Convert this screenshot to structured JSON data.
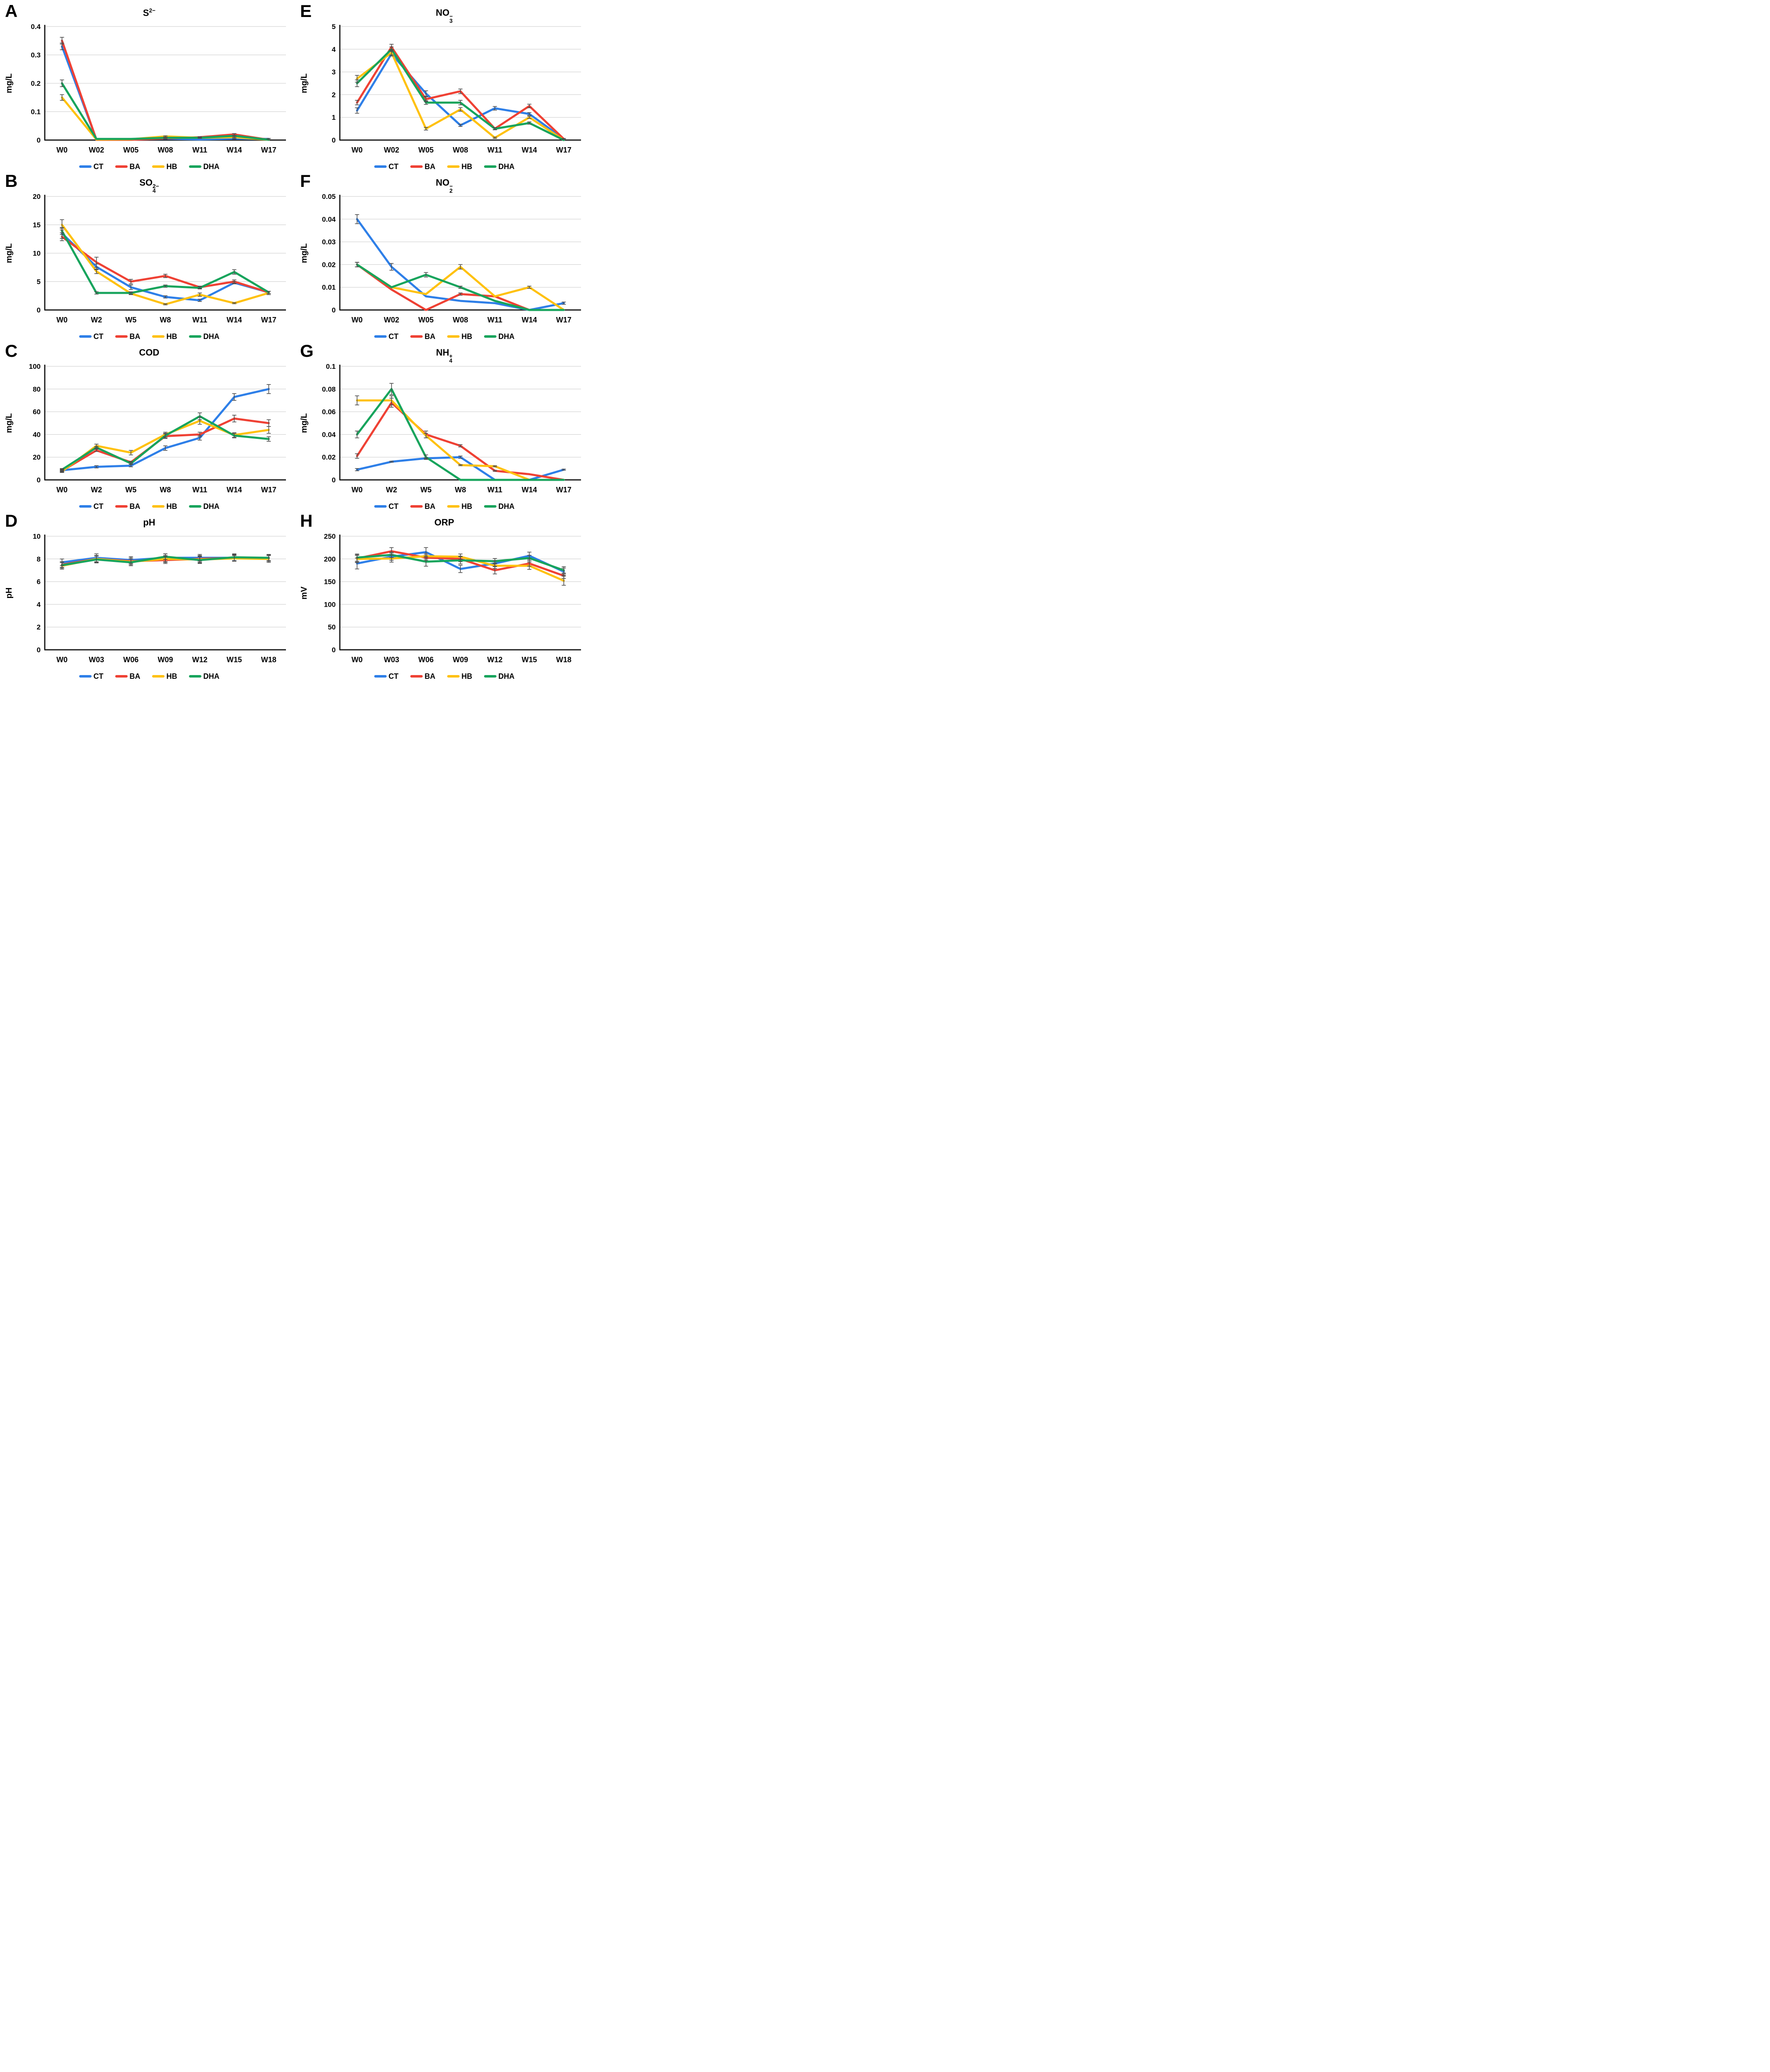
{
  "legend": {
    "items": [
      {
        "label": "CT",
        "color": "#2E7FE8"
      },
      {
        "label": "BA",
        "color": "#EF4134"
      },
      {
        "label": "HB",
        "color": "#FFC10E"
      },
      {
        "label": "DHA",
        "color": "#17A45C"
      }
    ]
  },
  "error_bar_color": "#4a4a4a",
  "gridline_color": "#c9c9c9",
  "axis_color": "#1a1a1a",
  "chart_data": [
    {
      "panel_label": "A",
      "type": "line",
      "title": {
        "base": "S",
        "sub": "",
        "sup": "2−"
      },
      "ylabel": "mg/L",
      "ylim": [
        0,
        0.4
      ],
      "yticks": [
        0,
        0.1,
        0.2,
        0.3,
        0.4
      ],
      "ytick_labels": [
        "0",
        "0.1",
        "0.2",
        "0.3",
        "0.4"
      ],
      "categories": [
        "W0",
        "W02",
        "W05",
        "W08",
        "W11",
        "W14",
        "W17"
      ],
      "grid": true,
      "legend_position": "bottom",
      "series": [
        {
          "name": "CT",
          "values": [
            0.33,
            0.002,
            0.002,
            0.005,
            0.002,
            0.005,
            0.004
          ],
          "errors": [
            0.012,
            0,
            0,
            0.002,
            0,
            0.002,
            0.002
          ]
        },
        {
          "name": "BA",
          "values": [
            0.35,
            0.001,
            0.001,
            0.006,
            0.01,
            0.02,
            0.001
          ],
          "errors": [
            0.012,
            0,
            0,
            0,
            0.002,
            0.003,
            0
          ]
        },
        {
          "name": "HB",
          "values": [
            0.15,
            0.002,
            0.003,
            0.013,
            0.008,
            0.01,
            0.001
          ],
          "errors": [
            0.01,
            0,
            0,
            0.002,
            0,
            0.002,
            0
          ]
        },
        {
          "name": "DHA",
          "values": [
            0.2,
            0.004,
            0.004,
            0.008,
            0.008,
            0.015,
            0.001
          ],
          "errors": [
            0.012,
            0,
            0,
            0.002,
            0.002,
            0.002,
            0
          ]
        }
      ]
    },
    {
      "panel_label": "E",
      "type": "line",
      "title": {
        "base": "NO",
        "sub": "3",
        "sup": "−"
      },
      "ylabel": "mg/L",
      "ylim": [
        0,
        5
      ],
      "yticks": [
        0,
        1,
        2,
        3,
        4,
        5
      ],
      "ytick_labels": [
        "0",
        "1",
        "2",
        "3",
        "4",
        "5"
      ],
      "categories": [
        "W0",
        "W02",
        "W05",
        "W08",
        "W11",
        "W14",
        "W17"
      ],
      "grid": true,
      "legend_position": "bottom",
      "series": [
        {
          "name": "CT",
          "values": [
            1.3,
            3.8,
            2.05,
            0.65,
            1.4,
            1.15,
            0.05
          ],
          "errors": [
            0.12,
            0.1,
            0.12,
            0.05,
            0.08,
            0.06,
            0.02
          ]
        },
        {
          "name": "BA",
          "values": [
            1.65,
            4.1,
            1.8,
            2.15,
            0.5,
            1.5,
            0.05
          ],
          "errors": [
            0.1,
            0.12,
            0.1,
            0.1,
            0.05,
            0.08,
            0.02
          ]
        },
        {
          "name": "HB",
          "values": [
            2.7,
            3.85,
            0.5,
            1.35,
            0.1,
            1.0,
            0.0
          ],
          "errors": [
            0.15,
            0.1,
            0.06,
            0.08,
            0.03,
            0.05,
            0
          ]
        },
        {
          "name": "DHA",
          "values": [
            2.5,
            4.0,
            1.65,
            1.65,
            0.5,
            0.75,
            0.0
          ],
          "errors": [
            0.15,
            0.1,
            0.08,
            0.1,
            0.04,
            0.05,
            0
          ]
        }
      ]
    },
    {
      "panel_label": "B",
      "type": "line",
      "title": {
        "base": "SO",
        "sub": "4",
        "sup": "2−"
      },
      "ylabel": "mg/L",
      "ylim": [
        0,
        20
      ],
      "yticks": [
        0,
        5,
        10,
        15,
        20
      ],
      "ytick_labels": [
        "0",
        "5",
        "10",
        "15",
        "20"
      ],
      "categories": [
        "W0",
        "W2",
        "W5",
        "W8",
        "W11",
        "W14",
        "W17"
      ],
      "grid": true,
      "legend_position": "bottom",
      "series": [
        {
          "name": "CT",
          "values": [
            13.5,
            7.6,
            4.0,
            2.3,
            1.7,
            4.8,
            3.1
          ],
          "errors": [
            0.9,
            0.5,
            0.4,
            0.2,
            0.2,
            0.2,
            0.2
          ]
        },
        {
          "name": "BA",
          "values": [
            12.9,
            8.4,
            5.0,
            6.0,
            4.0,
            5.0,
            3.1
          ],
          "errors": [
            0.7,
            0.9,
            0.4,
            0.3,
            0.2,
            0.3,
            0.2
          ]
        },
        {
          "name": "HB",
          "values": [
            15.0,
            6.8,
            2.9,
            1.0,
            2.7,
            1.2,
            3.0
          ],
          "errors": [
            0.9,
            0.4,
            0.2,
            0.1,
            0.3,
            0.1,
            0.3
          ]
        },
        {
          "name": "DHA",
          "values": [
            13.9,
            3.0,
            3.0,
            4.2,
            3.9,
            6.7,
            3.1
          ],
          "errors": [
            0.6,
            0.2,
            0.2,
            0.2,
            0.2,
            0.4,
            0.2
          ]
        }
      ]
    },
    {
      "panel_label": "F",
      "type": "line",
      "title": {
        "base": "NO",
        "sub": "2",
        "sup": "−"
      },
      "ylabel": "mg/L",
      "ylim": [
        0,
        0.05
      ],
      "yticks": [
        0,
        0.01,
        0.02,
        0.03,
        0.04,
        0.05
      ],
      "ytick_labels": [
        "0",
        "0.01",
        "0.02",
        "0.03",
        "0.04",
        "0.05"
      ],
      "categories": [
        "W0",
        "W02",
        "W05",
        "W08",
        "W11",
        "W14",
        "W17"
      ],
      "grid": true,
      "legend_position": "bottom",
      "series": [
        {
          "name": "CT",
          "values": [
            0.04,
            0.019,
            0.006,
            0.004,
            0.003,
            0.0,
            0.003
          ],
          "errors": [
            0.002,
            0.0015,
            0,
            0,
            0,
            0,
            0.0005
          ]
        },
        {
          "name": "BA",
          "values": [
            0.02,
            0.009,
            0.0,
            0.007,
            0.006,
            0.0,
            0.0
          ],
          "errors": [
            0.001,
            0,
            0,
            0.0005,
            0,
            0,
            0
          ]
        },
        {
          "name": "HB",
          "values": [
            0.02,
            0.01,
            0.007,
            0.019,
            0.006,
            0.01,
            0.0
          ],
          "errors": [
            0.001,
            0,
            0,
            0.001,
            0,
            0.0005,
            0
          ]
        },
        {
          "name": "DHA",
          "values": [
            0.02,
            0.01,
            0.0155,
            0.01,
            0.004,
            0.0,
            0.0
          ],
          "errors": [
            0.001,
            0,
            0.001,
            0.0005,
            0,
            0,
            0
          ]
        }
      ]
    },
    {
      "panel_label": "C",
      "type": "line",
      "title": {
        "base": "COD",
        "sub": "",
        "sup": ""
      },
      "ylabel": "mg/L",
      "ylim": [
        0,
        100
      ],
      "yticks": [
        0,
        20,
        40,
        60,
        80,
        100
      ],
      "ytick_labels": [
        "0",
        "20",
        "40",
        "60",
        "80",
        "100"
      ],
      "categories": [
        "W0",
        "W2",
        "W5",
        "W8",
        "W11",
        "W14",
        "W17"
      ],
      "grid": true,
      "legend_position": "bottom",
      "series": [
        {
          "name": "CT",
          "values": [
            8.5,
            11.5,
            12.5,
            28.0,
            37.0,
            73.0,
            80.0
          ],
          "errors": [
            1,
            1,
            1,
            2,
            2,
            3,
            4
          ]
        },
        {
          "name": "BA",
          "values": [
            8.0,
            26.0,
            15.5,
            38.5,
            40.0,
            54.0,
            50.0
          ],
          "errors": [
            1,
            1,
            1,
            2,
            2,
            3,
            3
          ]
        },
        {
          "name": "HB",
          "values": [
            7.5,
            30.0,
            24.0,
            40.0,
            52.0,
            39.5,
            44.0
          ],
          "errors": [
            1,
            1.5,
            2,
            2,
            3,
            2,
            3
          ]
        },
        {
          "name": "DHA",
          "values": [
            9.0,
            28.5,
            14.5,
            39.0,
            56.0,
            39.0,
            36.0
          ],
          "errors": [
            1,
            1,
            1,
            2,
            3,
            2,
            2
          ]
        }
      ]
    },
    {
      "panel_label": "G",
      "type": "line",
      "title": {
        "base": "NH",
        "sub": "4",
        "sup": "+"
      },
      "ylabel": "mg/L",
      "ylim": [
        0,
        0.1
      ],
      "yticks": [
        0,
        0.02,
        0.04,
        0.06,
        0.08,
        0.1
      ],
      "ytick_labels": [
        "0",
        "0.02",
        "0.04",
        "0.06",
        "0.08",
        "0.1"
      ],
      "categories": [
        "W0",
        "W2",
        "W5",
        "W8",
        "W11",
        "W14",
        "W17"
      ],
      "grid": true,
      "legend_position": "bottom",
      "series": [
        {
          "name": "CT",
          "values": [
            0.009,
            0.016,
            0.019,
            0.02,
            0.0,
            0.0,
            0.009
          ],
          "errors": [
            0.001,
            0.0005,
            0.0005,
            0.001,
            0,
            0,
            0.0005
          ]
        },
        {
          "name": "BA",
          "values": [
            0.021,
            0.068,
            0.04,
            0.03,
            0.008,
            0.005,
            0.0
          ],
          "errors": [
            0.002,
            0.004,
            0.003,
            0.001,
            0.0005,
            0,
            0
          ]
        },
        {
          "name": "HB",
          "values": [
            0.07,
            0.07,
            0.039,
            0.013,
            0.012,
            0.0,
            0.0
          ],
          "errors": [
            0.004,
            0.004,
            0.002,
            0.0005,
            0.0005,
            0,
            0
          ]
        },
        {
          "name": "DHA",
          "values": [
            0.04,
            0.08,
            0.02,
            0.0,
            0.0,
            0.0,
            0.0
          ],
          "errors": [
            0.003,
            0.005,
            0.002,
            0,
            0,
            0,
            0
          ]
        }
      ]
    },
    {
      "panel_label": "D",
      "type": "line",
      "title": {
        "base": "pH",
        "sub": "",
        "sup": ""
      },
      "ylabel": "pH",
      "ylim": [
        0,
        10
      ],
      "yticks": [
        0,
        2,
        4,
        6,
        8,
        10
      ],
      "ytick_labels": [
        "0",
        "2",
        "4",
        "6",
        "8",
        "10"
      ],
      "categories": [
        "W0",
        "W03",
        "W06",
        "W09",
        "W12",
        "W15",
        "W18"
      ],
      "grid": true,
      "legend_position": "bottom",
      "series": [
        {
          "name": "CT",
          "values": [
            7.7,
            8.1,
            7.9,
            8.1,
            8.1,
            8.1,
            8.1
          ],
          "errors": [
            0.3,
            0.35,
            0.3,
            0.35,
            0.3,
            0.3,
            0.3
          ]
        },
        {
          "name": "BA",
          "values": [
            7.5,
            8.0,
            7.8,
            7.9,
            8.0,
            8.1,
            8.05
          ],
          "errors": [
            0.25,
            0.3,
            0.3,
            0.3,
            0.3,
            0.25,
            0.25
          ]
        },
        {
          "name": "HB",
          "values": [
            7.4,
            8.0,
            7.75,
            8.0,
            7.95,
            8.05,
            8.0
          ],
          "errors": [
            0.3,
            0.3,
            0.25,
            0.3,
            0.3,
            0.25,
            0.3
          ]
        },
        {
          "name": "DHA",
          "values": [
            7.45,
            7.95,
            7.7,
            8.2,
            7.9,
            8.15,
            8.1
          ],
          "errors": [
            0.25,
            0.3,
            0.3,
            0.25,
            0.3,
            0.3,
            0.25
          ]
        }
      ]
    },
    {
      "panel_label": "H",
      "type": "line",
      "title": {
        "base": "ORP",
        "sub": "",
        "sup": ""
      },
      "ylabel": "mV",
      "ylim": [
        0,
        250
      ],
      "yticks": [
        0,
        50,
        100,
        150,
        200,
        250
      ],
      "ytick_labels": [
        "0",
        "50",
        "100",
        "150",
        "200",
        "250"
      ],
      "categories": [
        "W0",
        "W03",
        "W06",
        "W09",
        "W12",
        "W15",
        "W18"
      ],
      "grid": true,
      "legend_position": "bottom",
      "series": [
        {
          "name": "CT",
          "values": [
            190,
            205,
            215,
            178,
            190,
            207,
            172
          ],
          "errors": [
            12,
            8,
            10,
            8,
            6,
            8,
            8
          ]
        },
        {
          "name": "BA",
          "values": [
            201,
            217,
            203,
            200,
            175,
            190,
            163
          ],
          "errors": [
            8,
            8,
            6,
            6,
            8,
            6,
            6
          ]
        },
        {
          "name": "HB",
          "values": [
            200,
            201,
            206,
            205,
            185,
            185,
            152
          ],
          "errors": [
            8,
            8,
            6,
            6,
            6,
            8,
            10
          ]
        },
        {
          "name": "DHA",
          "values": [
            203,
            209,
            194,
            197,
            195,
            202,
            175
          ],
          "errors": [
            8,
            6,
            10,
            8,
            6,
            6,
            8
          ]
        }
      ]
    }
  ]
}
